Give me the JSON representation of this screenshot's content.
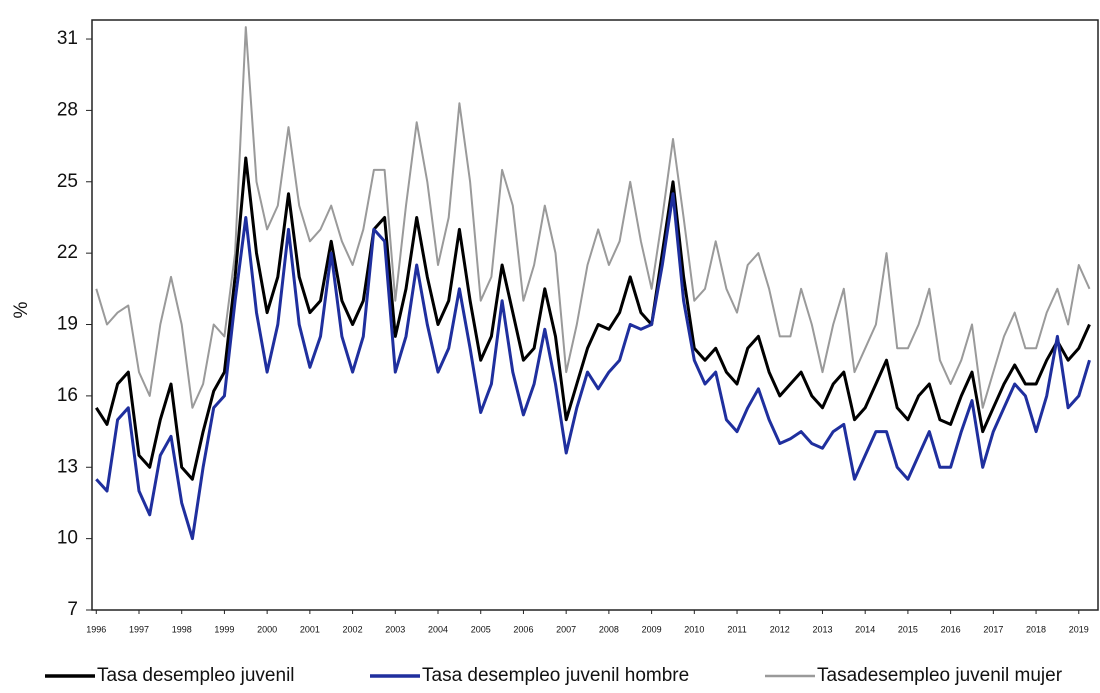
{
  "chart_data": {
    "type": "line",
    "y_label": "%",
    "x": [
      1996,
      1996.25,
      1996.5,
      1996.75,
      1997,
      1997.25,
      1997.5,
      1997.75,
      1998,
      1998.25,
      1998.5,
      1998.75,
      1999,
      1999.25,
      1999.5,
      1999.75,
      2000,
      2000.25,
      2000.5,
      2000.75,
      2001,
      2001.25,
      2001.5,
      2001.75,
      2002,
      2002.25,
      2002.5,
      2002.75,
      2003,
      2003.25,
      2003.5,
      2003.75,
      2004,
      2004.25,
      2004.5,
      2004.75,
      2005,
      2005.25,
      2005.5,
      2005.75,
      2006,
      2006.25,
      2006.5,
      2006.75,
      2007,
      2007.25,
      2007.5,
      2007.75,
      2008,
      2008.25,
      2008.5,
      2008.75,
      2009,
      2009.25,
      2009.5,
      2009.75,
      2010,
      2010.25,
      2010.5,
      2010.75,
      2011,
      2011.25,
      2011.5,
      2011.75,
      2012,
      2012.25,
      2012.5,
      2012.75,
      2013,
      2013.25,
      2013.5,
      2013.75,
      2014,
      2014.25,
      2014.5,
      2014.75,
      2015,
      2015.25,
      2015.5,
      2015.75,
      2016,
      2016.25,
      2016.5,
      2016.75,
      2017,
      2017.25,
      2017.5,
      2017.75,
      2018,
      2018.25,
      2018.5,
      2018.75,
      2019,
      2019.25
    ],
    "series": [
      {
        "name": "Tasa desempleo juvenil",
        "color": "#000000",
        "width": 3,
        "values": [
          15.5,
          14.8,
          16.5,
          17.0,
          13.5,
          13.0,
          15.0,
          16.5,
          13.0,
          12.5,
          14.5,
          16.2,
          17.0,
          21.0,
          26.0,
          22.0,
          19.5,
          21.0,
          24.5,
          21.0,
          19.5,
          20.0,
          22.5,
          20.0,
          19.0,
          20.0,
          23.0,
          23.5,
          18.5,
          20.5,
          23.5,
          21.0,
          19.0,
          20.0,
          23.0,
          20.0,
          17.5,
          18.5,
          21.5,
          19.5,
          17.5,
          18.0,
          20.5,
          18.5,
          15.0,
          16.5,
          18.0,
          19.0,
          18.8,
          19.5,
          21.0,
          19.5,
          19.0,
          22.0,
          25.0,
          21.0,
          18.0,
          17.5,
          18.0,
          17.0,
          16.5,
          18.0,
          18.5,
          17.0,
          16.0,
          16.5,
          17.0,
          16.0,
          15.5,
          16.5,
          17.0,
          15.0,
          15.5,
          16.5,
          17.5,
          15.5,
          15.0,
          16.0,
          16.5,
          15.0,
          14.8,
          16.0,
          17.0,
          14.5,
          15.5,
          16.5,
          17.3,
          16.5,
          16.5,
          17.5,
          18.3,
          17.5,
          18.0,
          19.0
        ]
      },
      {
        "name": "Tasa desempleo juvenil hombre",
        "color": "#1f2f9e",
        "width": 3,
        "values": [
          12.5,
          12.0,
          15.0,
          15.5,
          12.0,
          11.0,
          13.5,
          14.3,
          11.5,
          10.0,
          13.0,
          15.5,
          16.0,
          20.0,
          23.5,
          19.5,
          17.0,
          19.0,
          23.0,
          19.0,
          17.2,
          18.5,
          22.0,
          18.5,
          17.0,
          18.5,
          23.0,
          22.5,
          17.0,
          18.5,
          21.5,
          19.0,
          17.0,
          18.0,
          20.5,
          18.0,
          15.3,
          16.5,
          20.0,
          17.0,
          15.2,
          16.5,
          18.8,
          16.5,
          13.6,
          15.5,
          17.0,
          16.3,
          17.0,
          17.5,
          19.0,
          18.8,
          19.0,
          21.5,
          24.5,
          20.0,
          17.5,
          16.5,
          17.0,
          15.0,
          14.5,
          15.5,
          16.3,
          15.0,
          14.0,
          14.2,
          14.5,
          14.0,
          13.8,
          14.5,
          14.8,
          12.5,
          13.5,
          14.5,
          14.5,
          13.0,
          12.5,
          13.5,
          14.5,
          13.0,
          13.0,
          14.5,
          15.8,
          13.0,
          14.5,
          15.5,
          16.5,
          16.0,
          14.5,
          16.0,
          18.5,
          15.5,
          16.0,
          17.5
        ]
      },
      {
        "name": "Tasadesempleo juvenil mujer",
        "color": "#9a9a9a",
        "width": 2,
        "values": [
          20.5,
          19.0,
          19.5,
          19.8,
          17.0,
          16.0,
          19.0,
          21.0,
          19.0,
          15.5,
          16.5,
          19.0,
          18.5,
          22.0,
          31.5,
          25.0,
          23.0,
          24.0,
          27.3,
          24.0,
          22.5,
          23.0,
          24.0,
          22.5,
          21.5,
          23.0,
          25.5,
          25.5,
          20.0,
          24.0,
          27.5,
          25.0,
          21.5,
          23.5,
          28.3,
          25.0,
          20.0,
          21.0,
          25.5,
          24.0,
          20.0,
          21.5,
          24.0,
          22.0,
          17.0,
          19.0,
          21.5,
          23.0,
          21.5,
          22.5,
          25.0,
          22.5,
          20.5,
          23.5,
          26.8,
          23.5,
          20.0,
          20.5,
          22.5,
          20.5,
          19.5,
          21.5,
          22.0,
          20.5,
          18.5,
          18.5,
          20.5,
          19.0,
          17.0,
          19.0,
          20.5,
          17.0,
          18.0,
          19.0,
          22.0,
          18.0,
          18.0,
          19.0,
          20.5,
          17.5,
          16.5,
          17.5,
          19.0,
          15.5,
          17.0,
          18.5,
          19.5,
          18.0,
          18.0,
          19.5,
          20.5,
          19.0,
          21.5,
          20.5
        ]
      }
    ],
    "xlim": [
      1995.9,
      2019.45
    ],
    "xticks": [
      1996,
      1997,
      1998,
      1999,
      2000,
      2001,
      2002,
      2003,
      2004,
      2005,
      2006,
      2007,
      2008,
      2009,
      2010,
      2011,
      2012,
      2013,
      2014,
      2015,
      2016,
      2017,
      2018,
      2019
    ],
    "ylim": [
      7,
      31.8
    ],
    "yticks": [
      7,
      10,
      13,
      16,
      19,
      22,
      25,
      28,
      31
    ],
    "grid": false,
    "legend": "bottom"
  }
}
